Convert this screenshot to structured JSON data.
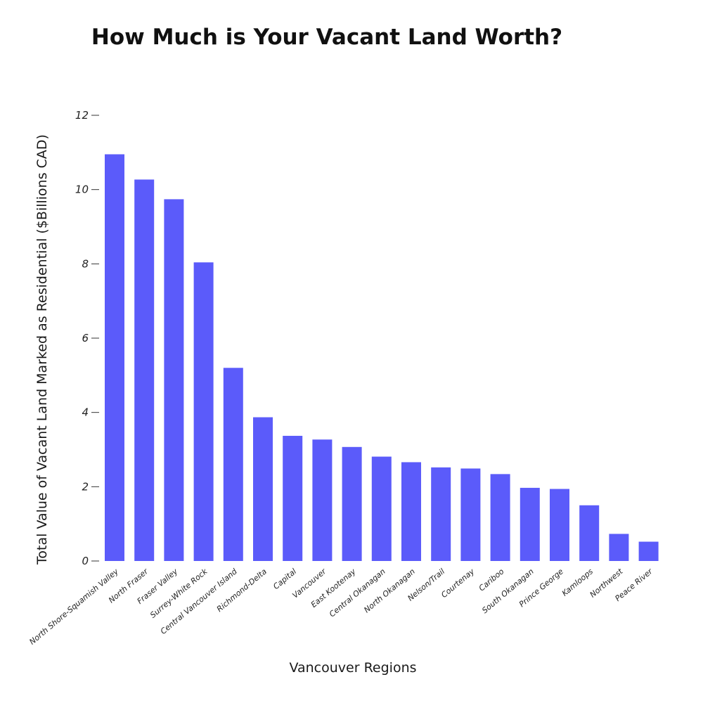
{
  "chart_data": {
    "type": "bar",
    "title": "How Much is Your Vacant Land Worth?",
    "xlabel": "Vancouver Regions",
    "ylabel": "Total Value of Vacant Land Marked as Residential ($Billions CAD)",
    "ylim": [
      0,
      12
    ],
    "yticks": [
      0,
      2,
      4,
      6,
      8,
      10,
      12
    ],
    "grid": false,
    "legend": "none",
    "bar_color": "#5b5bfa",
    "categories": [
      "North Shore-Squamish Valley",
      "North Fraser",
      "Fraser Valley",
      "Surrey-White Rock",
      "Central Vancouver Island",
      "Richmond-Delta",
      "Capital",
      "Vancouver",
      "East Kootenay",
      "Central Okanagan",
      "North Okanagan",
      "Nelson/Trail",
      "Courtenay",
      "Cariboo",
      "South Okanagan",
      "Prince George",
      "Kamloops",
      "Northwest",
      "Peace River"
    ],
    "values": [
      10.95,
      10.27,
      9.74,
      8.04,
      5.2,
      3.87,
      3.37,
      3.27,
      3.07,
      2.81,
      2.66,
      2.52,
      2.49,
      2.34,
      1.97,
      1.94,
      1.5,
      0.73,
      0.52
    ]
  }
}
